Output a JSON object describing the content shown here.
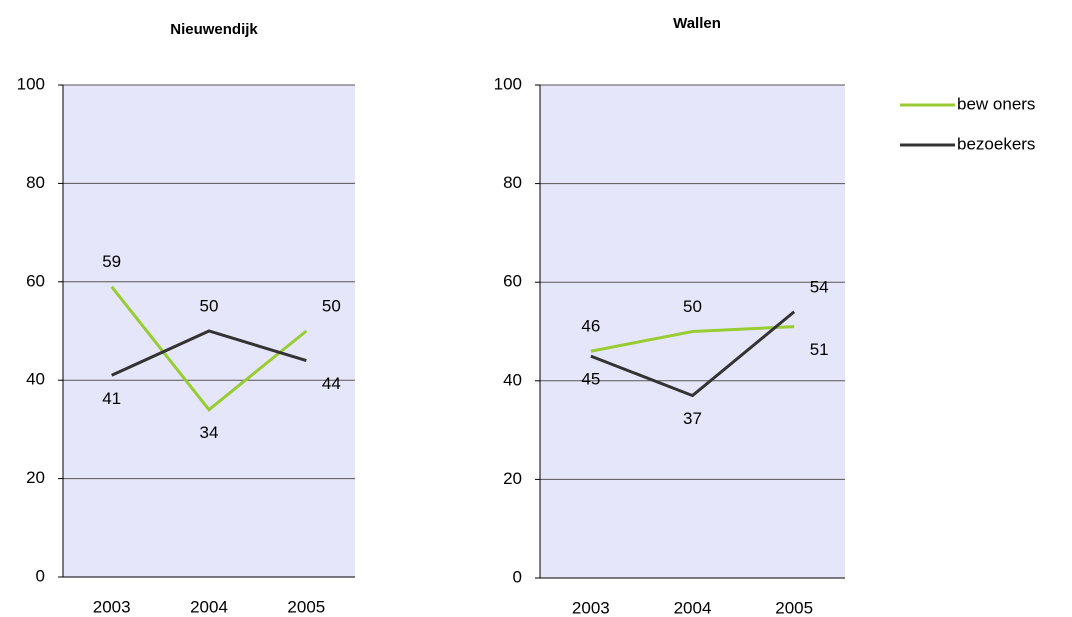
{
  "chart_data": [
    {
      "type": "line",
      "title": "Nieuwendijk",
      "categories": [
        "2003",
        "2004",
        "2005"
      ],
      "series": [
        {
          "color": "#99cc33",
          "values": [
            59,
            34,
            50
          ]
        },
        {
          "color": "#333333",
          "values": [
            41,
            50,
            44
          ]
        }
      ],
      "ylim": [
        0,
        100
      ],
      "yticks": [
        0,
        20,
        40,
        60,
        80,
        100
      ],
      "grid": true
    },
    {
      "type": "line",
      "title": "Wallen",
      "categories": [
        "2003",
        "2004",
        "2005"
      ],
      "series": [
        {
          "name": "bew oners",
          "color": "#99cc33",
          "values": [
            46,
            50,
            51
          ]
        },
        {
          "name": "bezoekers",
          "color": "#333333",
          "values": [
            45,
            37,
            54
          ]
        }
      ],
      "ylim": [
        0,
        100
      ],
      "yticks": [
        0,
        20,
        40,
        60,
        80,
        100
      ],
      "grid": true,
      "legend": "right"
    }
  ]
}
